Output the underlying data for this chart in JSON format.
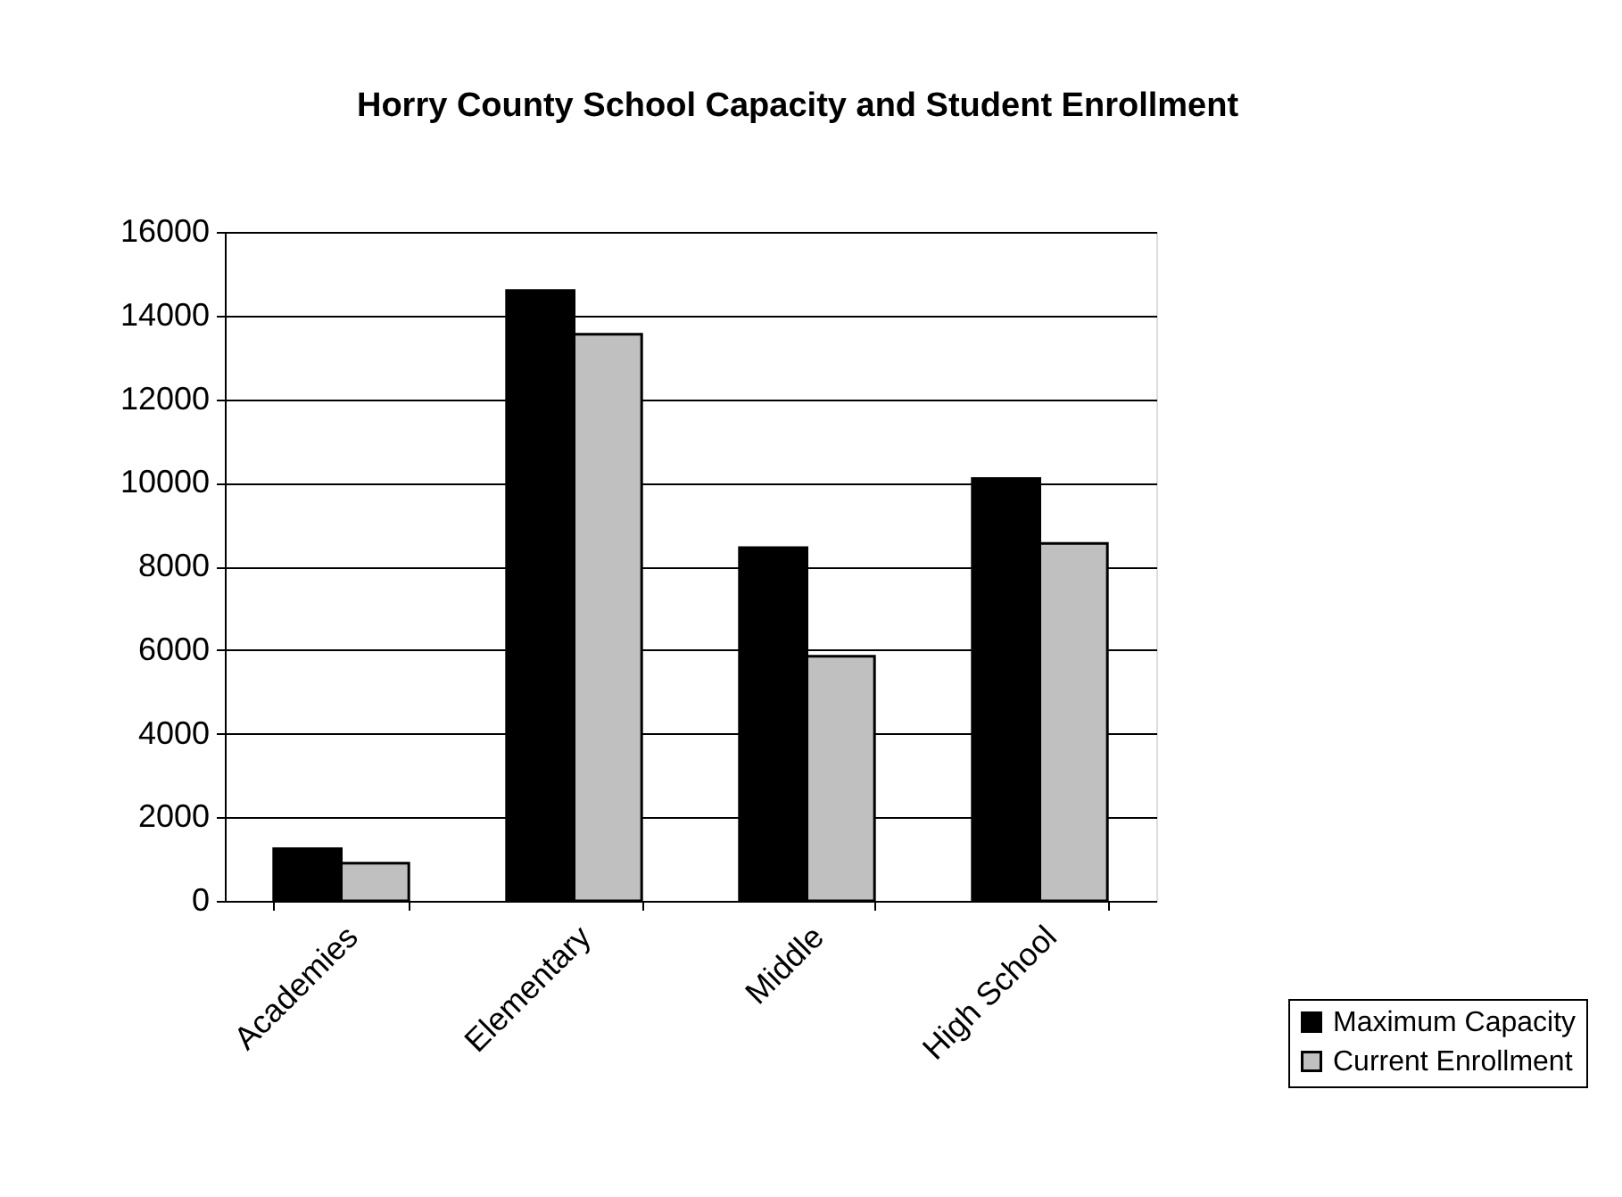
{
  "chart_data": {
    "type": "bar",
    "title": "Horry County School Capacity and Student Enrollment",
    "categories": [
      "Academies",
      "Elementary",
      "Middle",
      "High School"
    ],
    "series": [
      {
        "name": "Maximum Capacity",
        "color": "#000000",
        "values": [
          1250,
          14600,
          8450,
          10100
        ]
      },
      {
        "name": "Current Enrollment",
        "color": "#c0c0c0",
        "values": [
          900,
          13550,
          5850,
          8550
        ]
      }
    ],
    "ylim": [
      0,
      16000
    ],
    "yticks": [
      0,
      2000,
      4000,
      6000,
      8000,
      10000,
      12000,
      14000,
      16000
    ],
    "grid": "y",
    "legend": "bottom right"
  }
}
